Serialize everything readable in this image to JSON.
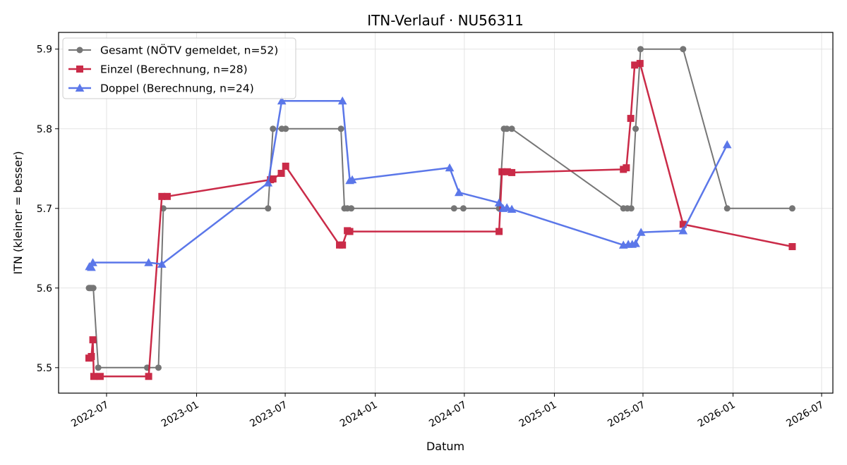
{
  "chart_data": {
    "type": "line",
    "title": "ITN-Verlauf · NU56311",
    "xlabel": "Datum",
    "ylabel": "ITN  (kleiner = besser)",
    "x_axis_type": "date",
    "xlim": [
      "2022-03-25",
      "2026-07-24"
    ],
    "ylim": [
      5.468,
      5.921
    ],
    "x_ticks": [
      {
        "date": "2022-07-01",
        "label": "2022-07"
      },
      {
        "date": "2023-01-01",
        "label": "2023-01"
      },
      {
        "date": "2023-07-01",
        "label": "2023-07"
      },
      {
        "date": "2024-01-01",
        "label": "2024-01"
      },
      {
        "date": "2024-07-01",
        "label": "2024-07"
      },
      {
        "date": "2025-01-01",
        "label": "2025-01"
      },
      {
        "date": "2025-07-01",
        "label": "2025-07"
      },
      {
        "date": "2026-01-01",
        "label": "2026-01"
      },
      {
        "date": "2026-07-01",
        "label": "2026-07"
      }
    ],
    "y_ticks": [
      {
        "value": 5.5,
        "label": "5.5"
      },
      {
        "value": 5.6,
        "label": "5.6"
      },
      {
        "value": 5.7,
        "label": "5.7"
      },
      {
        "value": 5.8,
        "label": "5.8"
      },
      {
        "value": 5.9,
        "label": "5.9"
      }
    ],
    "grid": true,
    "legend_position": "top-left",
    "series": [
      {
        "name": "Gesamt (NÖTV gemeldet, n=52)",
        "color": "#555555",
        "marker": "circle",
        "points": [
          {
            "x": "2022-05-26",
            "y": 5.6
          },
          {
            "x": "2022-05-29",
            "y": 5.6
          },
          {
            "x": "2022-06-01",
            "y": 5.6
          },
          {
            "x": "2022-06-04",
            "y": 5.6
          },
          {
            "x": "2022-06-14",
            "y": 5.5
          },
          {
            "x": "2022-09-22",
            "y": 5.5
          },
          {
            "x": "2022-10-15",
            "y": 5.5
          },
          {
            "x": "2022-10-25",
            "y": 5.7
          },
          {
            "x": "2023-05-27",
            "y": 5.7
          },
          {
            "x": "2023-06-06",
            "y": 5.8
          },
          {
            "x": "2023-06-24",
            "y": 5.8
          },
          {
            "x": "2023-07-02",
            "y": 5.8
          },
          {
            "x": "2023-10-23",
            "y": 5.8
          },
          {
            "x": "2023-10-30",
            "y": 5.7
          },
          {
            "x": "2023-11-05",
            "y": 5.7
          },
          {
            "x": "2023-11-13",
            "y": 5.7
          },
          {
            "x": "2024-06-10",
            "y": 5.7
          },
          {
            "x": "2024-06-29",
            "y": 5.7
          },
          {
            "x": "2024-09-10",
            "y": 5.7
          },
          {
            "x": "2024-09-20",
            "y": 5.8
          },
          {
            "x": "2024-09-26",
            "y": 5.8
          },
          {
            "x": "2024-10-06",
            "y": 5.8
          },
          {
            "x": "2025-05-22",
            "y": 5.7
          },
          {
            "x": "2025-05-30",
            "y": 5.7
          },
          {
            "x": "2025-06-07",
            "y": 5.7
          },
          {
            "x": "2025-06-16",
            "y": 5.8
          },
          {
            "x": "2025-06-26",
            "y": 5.9
          },
          {
            "x": "2025-09-21",
            "y": 5.9
          },
          {
            "x": "2025-12-20",
            "y": 5.7
          },
          {
            "x": "2026-05-02",
            "y": 5.7
          }
        ]
      },
      {
        "name": "Einzel (Berechnung, n=28)",
        "color": "#c8203f",
        "marker": "square",
        "points": [
          {
            "x": "2022-05-26",
            "y": 5.512
          },
          {
            "x": "2022-05-31",
            "y": 5.514
          },
          {
            "x": "2022-06-03",
            "y": 5.535
          },
          {
            "x": "2022-06-05",
            "y": 5.489
          },
          {
            "x": "2022-06-18",
            "y": 5.489
          },
          {
            "x": "2022-09-25",
            "y": 5.489
          },
          {
            "x": "2022-10-22",
            "y": 5.715
          },
          {
            "x": "2022-11-02",
            "y": 5.715
          },
          {
            "x": "2023-06-01",
            "y": 5.736
          },
          {
            "x": "2023-06-06",
            "y": 5.737
          },
          {
            "x": "2023-06-23",
            "y": 5.744
          },
          {
            "x": "2023-07-02",
            "y": 5.753
          },
          {
            "x": "2023-10-20",
            "y": 5.654
          },
          {
            "x": "2023-10-26",
            "y": 5.654
          },
          {
            "x": "2023-11-05",
            "y": 5.672
          },
          {
            "x": "2023-11-10",
            "y": 5.671
          },
          {
            "x": "2024-09-10",
            "y": 5.671
          },
          {
            "x": "2024-09-16",
            "y": 5.746
          },
          {
            "x": "2024-09-27",
            "y": 5.746
          },
          {
            "x": "2024-10-06",
            "y": 5.745
          },
          {
            "x": "2025-05-22",
            "y": 5.749
          },
          {
            "x": "2025-05-28",
            "y": 5.751
          },
          {
            "x": "2025-06-06",
            "y": 5.813
          },
          {
            "x": "2025-06-14",
            "y": 5.88
          },
          {
            "x": "2025-06-25",
            "y": 5.882
          },
          {
            "x": "2025-09-21",
            "y": 5.68
          },
          {
            "x": "2026-05-02",
            "y": 5.652
          }
        ]
      },
      {
        "name": "Doppel (Berechnung, n=24)",
        "color": "#5370e8",
        "marker": "triangle",
        "points": [
          {
            "x": "2022-05-27",
            "y": 5.627
          },
          {
            "x": "2022-05-31",
            "y": 5.626
          },
          {
            "x": "2022-06-03",
            "y": 5.632
          },
          {
            "x": "2022-09-25",
            "y": 5.632
          },
          {
            "x": "2022-10-22",
            "y": 5.63
          },
          {
            "x": "2023-05-27",
            "y": 5.732
          },
          {
            "x": "2023-06-24",
            "y": 5.835
          },
          {
            "x": "2023-10-26",
            "y": 5.835
          },
          {
            "x": "2023-11-10",
            "y": 5.735
          },
          {
            "x": "2023-11-15",
            "y": 5.736
          },
          {
            "x": "2024-06-01",
            "y": 5.751
          },
          {
            "x": "2024-06-20",
            "y": 5.72
          },
          {
            "x": "2024-09-10",
            "y": 5.707
          },
          {
            "x": "2024-09-18",
            "y": 5.7
          },
          {
            "x": "2024-09-26",
            "y": 5.701
          },
          {
            "x": "2024-10-06",
            "y": 5.699
          },
          {
            "x": "2025-05-22",
            "y": 5.654
          },
          {
            "x": "2025-06-01",
            "y": 5.655
          },
          {
            "x": "2025-06-09",
            "y": 5.655
          },
          {
            "x": "2025-06-16",
            "y": 5.656
          },
          {
            "x": "2025-06-27",
            "y": 5.67
          },
          {
            "x": "2025-09-21",
            "y": 5.672
          },
          {
            "x": "2025-12-20",
            "y": 5.78
          }
        ]
      }
    ]
  }
}
